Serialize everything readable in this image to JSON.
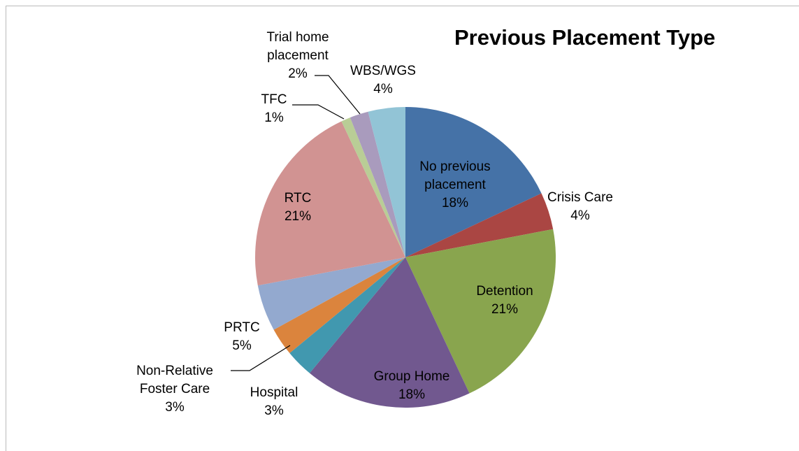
{
  "chart_data": {
    "type": "pie",
    "title": "Previous Placement Type",
    "categories": [
      "No previous placement",
      "Crisis Care",
      "Detention",
      "Group Home",
      "Hospital",
      "Non-Relative Foster Care",
      "PRTC",
      "RTC",
      "TFC",
      "Trial home placement",
      "WBS/WGS"
    ],
    "values": [
      18,
      4,
      21,
      18,
      3,
      3,
      5,
      21,
      1,
      2,
      4
    ],
    "value_labels": [
      "18%",
      "4%",
      "21%",
      "18%",
      "3%",
      "3%",
      "5%",
      "21%",
      "1%",
      "2%",
      "4%"
    ],
    "colors": [
      "#4572a7",
      "#aa4643",
      "#89a54e",
      "#71588f",
      "#4198af",
      "#db843d",
      "#93a9cf",
      "#d19392",
      "#b9cd96",
      "#a99bbd",
      "#92c4d6"
    ]
  }
}
